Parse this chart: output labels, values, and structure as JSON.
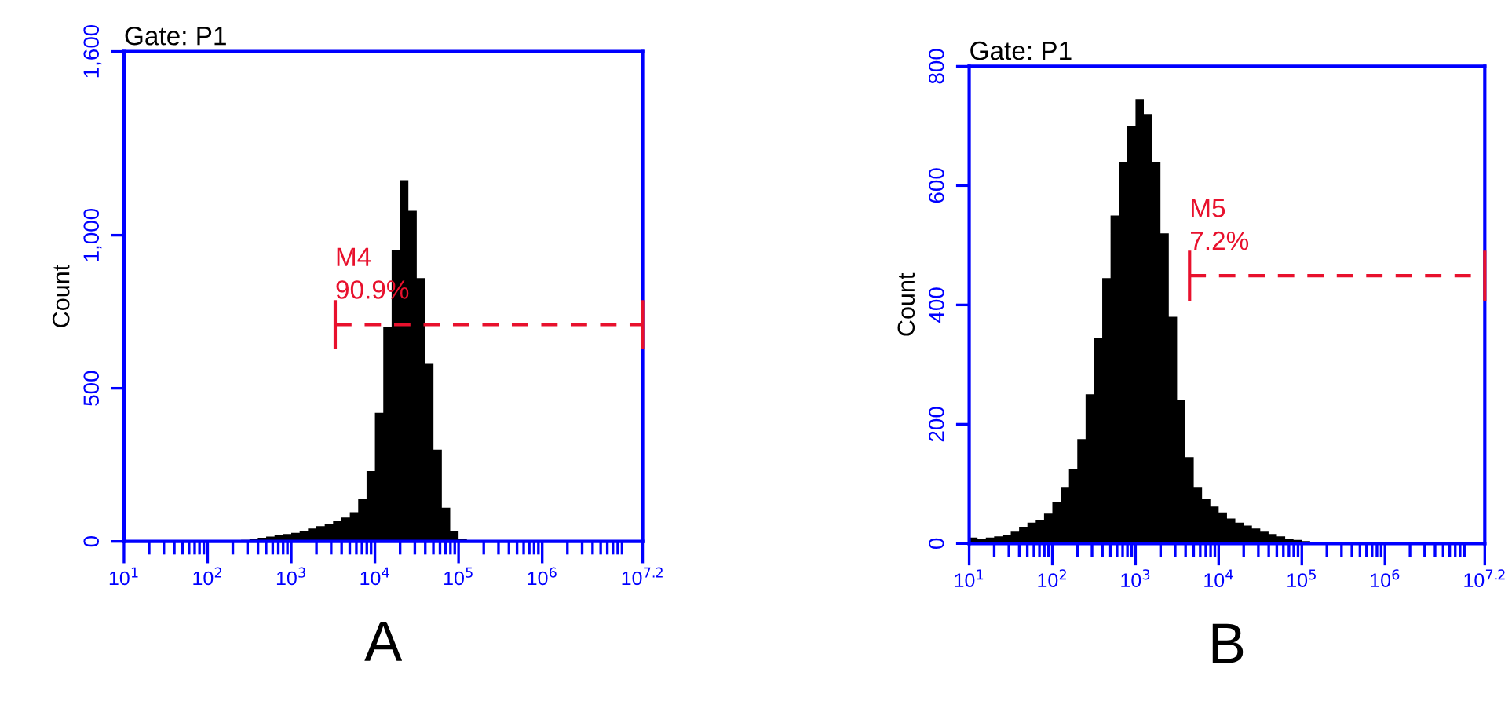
{
  "chart_data": [
    {
      "type": "histogram",
      "title": "Gate: P1",
      "xlabel": "A",
      "ylabel": "Count",
      "log": "x",
      "grid": false,
      "legend": false,
      "xlim": [
        10,
        15848932
      ],
      "xticks": [
        {
          "value": 10,
          "label": "10$^{1}$"
        },
        {
          "value": 100,
          "label": "10$^{2}$"
        },
        {
          "value": 1000,
          "label": "10$^{3}$"
        },
        {
          "value": 10000,
          "label": "10$^{4}$"
        },
        {
          "value": 100000,
          "label": "10$^{5}$"
        },
        {
          "value": 1000000,
          "label": "10$^{6}$"
        },
        {
          "value": 15848932,
          "label": "10$^{7.2}$"
        }
      ],
      "ylim": [
        0,
        1600
      ],
      "yticks": [
        0,
        500,
        {
          "value": 1000,
          "label": "1,000"
        },
        {
          "value": 1600,
          "label": "1,600"
        }
      ],
      "series": [
        {
          "color": "#000000",
          "bins": [
            251,
            316,
            398,
            501,
            631,
            794,
            1000,
            1259,
            1585,
            1995,
            2512,
            3162,
            3981,
            5012,
            6310,
            7943,
            10000,
            12589,
            15849,
            19953,
            25119,
            31623,
            39811,
            50119,
            63096,
            79433,
            100000,
            125893
          ],
          "values": [
            5,
            8,
            12,
            16,
            20,
            24,
            28,
            35,
            42,
            50,
            58,
            68,
            78,
            95,
            140,
            230,
            420,
            700,
            950,
            1180,
            1080,
            860,
            580,
            300,
            110,
            35,
            8
          ]
        },
        {
          "type": "line",
          "color": "#e8112d",
          "line_style": "dashed",
          "marker": "none",
          "x": [
            3350,
            15848932
          ],
          "values": [
            708,
            708
          ],
          "errors": [
            80,
            80
          ]
        }
      ],
      "annotations": [
        "M4",
        "90.9%"
      ]
    },
    {
      "type": "histogram",
      "title": "Gate: P1",
      "xlabel": "B",
      "ylabel": "Count",
      "log": "x",
      "grid": false,
      "legend": false,
      "xlim": [
        10,
        15848932
      ],
      "xticks": [
        {
          "value": 10,
          "label": "10$^{1}$"
        },
        {
          "value": 100,
          "label": "10$^{2}$"
        },
        {
          "value": 1000,
          "label": "10$^{3}$"
        },
        {
          "value": 10000,
          "label": "10$^{4}$"
        },
        {
          "value": 100000,
          "label": "10$^{5}$"
        },
        {
          "value": 1000000,
          "label": "10$^{6}$"
        },
        {
          "value": 15848932,
          "label": "10$^{7.2}$"
        }
      ],
      "ylim": [
        0,
        800
      ],
      "yticks": [
        0,
        200,
        400,
        600,
        800
      ],
      "series": [
        {
          "color": "#000000",
          "bins": [
            10,
            12.59,
            15.85,
            19.95,
            25.12,
            31.62,
            39.81,
            50.12,
            63.1,
            79.43,
            100,
            125.9,
            158.5,
            199.5,
            251,
            316,
            398,
            501,
            631,
            794,
            1000,
            1259,
            1585,
            1995,
            2512,
            3162,
            3981,
            5012,
            6310,
            7943,
            10000,
            12589,
            15849,
            19953,
            25119,
            31623,
            39811,
            50119,
            63096,
            79433,
            100000,
            125893,
            158489,
            199526
          ],
          "values": [
            10,
            8,
            10,
            12,
            15,
            20,
            28,
            35,
            40,
            50,
            70,
            95,
            125,
            175,
            250,
            345,
            445,
            550,
            640,
            700,
            745,
            720,
            640,
            520,
            380,
            240,
            145,
            95,
            75,
            62,
            52,
            42,
            35,
            30,
            25,
            20,
            16,
            12,
            8,
            6,
            4,
            3,
            2
          ]
        },
        {
          "type": "line",
          "color": "#e8112d",
          "line_style": "dashed",
          "marker": "none",
          "x": [
            4467,
            15848932
          ],
          "values": [
            449,
            449
          ],
          "errors": [
            42,
            42
          ]
        }
      ],
      "annotations": [
        "M5",
        "7.2%"
      ]
    }
  ]
}
